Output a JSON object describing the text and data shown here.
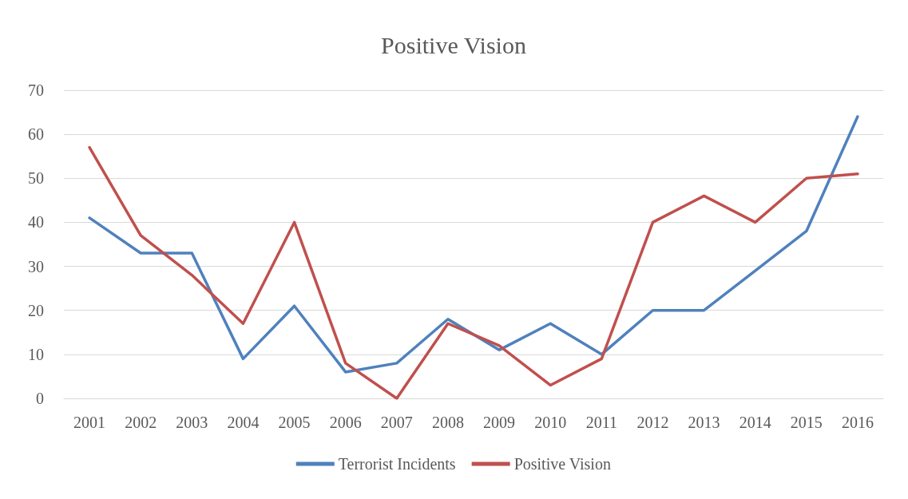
{
  "chart_data": {
    "type": "line",
    "title": "Positive Vision",
    "categories": [
      "2001",
      "2002",
      "2003",
      "2004",
      "2005",
      "2006",
      "2007",
      "2008",
      "2009",
      "2010",
      "2011",
      "2012",
      "2013",
      "2014",
      "2015",
      "2016"
    ],
    "series": [
      {
        "name": "Terrorist Incidents",
        "color": "#4f81bd",
        "values": [
          41,
          33,
          33,
          9,
          21,
          6,
          8,
          18,
          11,
          17,
          10,
          20,
          20,
          29,
          38,
          64
        ]
      },
      {
        "name": "Positive Vision",
        "color": "#c0504d",
        "values": [
          57,
          37,
          28,
          17,
          40,
          8,
          0,
          17,
          12,
          3,
          9,
          40,
          46,
          40,
          50,
          51
        ]
      }
    ],
    "ylim": [
      0,
      70
    ],
    "yticks": [
      0,
      10,
      20,
      30,
      40,
      50,
      60,
      70
    ],
    "grid": "y",
    "legend": "bottom",
    "marker": "none",
    "line_style": "solid"
  }
}
